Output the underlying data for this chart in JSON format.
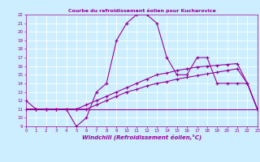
{
  "title": "Courbe du refroidissement éolien pour Kucharovice",
  "xlabel": "Windchill (Refroidissement éolien,°C)",
  "bg_color": "#cceeff",
  "grid_color": "#ffffff",
  "line_color": "#990099",
  "xmin": 0,
  "xmax": 23,
  "ymin": 9,
  "ymax": 22,
  "line1_x": [
    0,
    1,
    2,
    3,
    4,
    5,
    6,
    7,
    8,
    9,
    10,
    11,
    12,
    13,
    14,
    15,
    16,
    17,
    18,
    19,
    20,
    21,
    22,
    23
  ],
  "line1_y": [
    12,
    11,
    11,
    11,
    11,
    9,
    10,
    13,
    14,
    19,
    21,
    22,
    22,
    21,
    17,
    15,
    15,
    17,
    17,
    14,
    14,
    14,
    14,
    11
  ],
  "line2_x": [
    0,
    1,
    2,
    3,
    4,
    5,
    6,
    7,
    8,
    9,
    10,
    11,
    12,
    13,
    14,
    15,
    16,
    17,
    18,
    19,
    20,
    21,
    22,
    23
  ],
  "line2_y": [
    11,
    11,
    11,
    11,
    11,
    11,
    11,
    11,
    11,
    11,
    11,
    11,
    11,
    11,
    11,
    11,
    11,
    11,
    11,
    11,
    11,
    11,
    11,
    11
  ],
  "line3_x": [
    0,
    1,
    2,
    3,
    4,
    5,
    6,
    7,
    8,
    9,
    10,
    11,
    12,
    13,
    14,
    15,
    16,
    17,
    18,
    19,
    20,
    21,
    22,
    23
  ],
  "line3_y": [
    11,
    11,
    11,
    11,
    11,
    11,
    11.5,
    12,
    12.5,
    13,
    13.5,
    14,
    14.5,
    15,
    15.2,
    15.5,
    15.7,
    15.9,
    16,
    16.1,
    16.2,
    16.3,
    14,
    11
  ],
  "line4_x": [
    0,
    1,
    2,
    3,
    4,
    5,
    6,
    7,
    8,
    9,
    10,
    11,
    12,
    13,
    14,
    15,
    16,
    17,
    18,
    19,
    20,
    21,
    22,
    23
  ],
  "line4_y": [
    11,
    11,
    11,
    11,
    11,
    11,
    11,
    11.5,
    12,
    12.5,
    13,
    13.3,
    13.7,
    14,
    14.2,
    14.5,
    14.7,
    14.9,
    15.1,
    15.3,
    15.5,
    15.7,
    14,
    11
  ]
}
